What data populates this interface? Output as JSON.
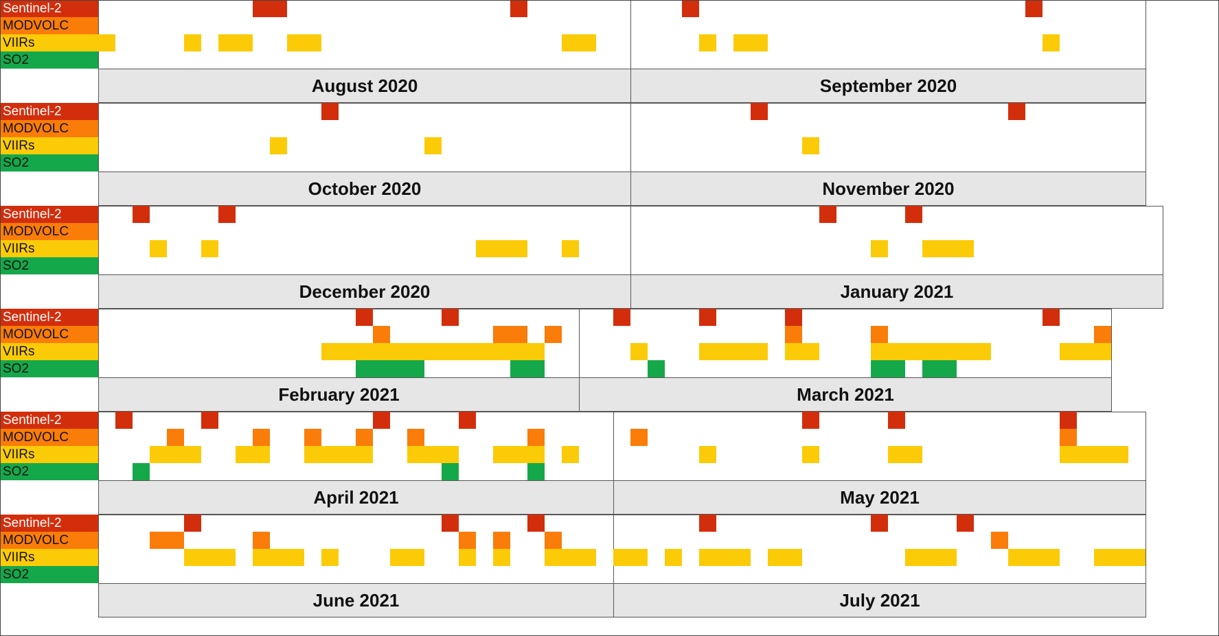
{
  "chart_data": {
    "type": "timeline",
    "legend": [
      "Sentinel-2",
      "MODVOLC",
      "VIIRs",
      "SO2"
    ],
    "colors": {
      "Sentinel-2": "#D22E0C",
      "MODVOLC": "#FA7C09",
      "VIIRs": "#FCCB08",
      "SO2": "#15A84A"
    },
    "rows": [
      {
        "months": [
          {
            "label": "August 2020",
            "days": 31,
            "series": {
              "Sentinel-2": [
                10,
                11,
                25
              ],
              "MODVOLC": [],
              "VIIRs": [
                1,
                6,
                8,
                9,
                12,
                13,
                28,
                29
              ],
              "SO2": []
            }
          },
          {
            "label": "September 2020",
            "days": 30,
            "series": {
              "Sentinel-2": [
                4,
                24
              ],
              "MODVOLC": [],
              "VIIRs": [
                5,
                7,
                8,
                25
              ],
              "SO2": []
            }
          }
        ]
      },
      {
        "months": [
          {
            "label": "October 2020",
            "days": 31,
            "series": {
              "Sentinel-2": [
                14
              ],
              "MODVOLC": [],
              "VIIRs": [
                11,
                20
              ],
              "SO2": []
            }
          },
          {
            "label": "November 2020",
            "days": 30,
            "series": {
              "Sentinel-2": [
                8,
                23
              ],
              "MODVOLC": [],
              "VIIRs": [
                11
              ],
              "SO2": []
            }
          }
        ]
      },
      {
        "months": [
          {
            "label": "December 2020",
            "days": 31,
            "series": {
              "Sentinel-2": [
                3,
                8
              ],
              "MODVOLC": [],
              "VIIRs": [
                4,
                7,
                23,
                24,
                25,
                28
              ],
              "SO2": []
            }
          },
          {
            "label": "January 2021",
            "days": 31,
            "series": {
              "Sentinel-2": [
                12,
                17
              ],
              "MODVOLC": [],
              "VIIRs": [
                15,
                18,
                19,
                20
              ],
              "SO2": []
            }
          }
        ]
      },
      {
        "months": [
          {
            "label": "February 2021",
            "days": 28,
            "series": {
              "Sentinel-2": [
                16,
                21
              ],
              "MODVOLC": [
                17,
                24,
                25,
                27
              ],
              "VIIRs": [
                14,
                15,
                16,
                17,
                18,
                19,
                20,
                21,
                22,
                23,
                24,
                25,
                26
              ],
              "SO2": [
                16,
                17,
                18,
                19,
                25,
                26
              ]
            }
          },
          {
            "label": "March 2021",
            "days": 31,
            "series": {
              "Sentinel-2": [
                3,
                8,
                13,
                28
              ],
              "MODVOLC": [
                13,
                18,
                31
              ],
              "VIIRs": [
                4,
                8,
                9,
                10,
                11,
                13,
                14,
                18,
                19,
                20,
                21,
                22,
                23,
                24,
                29,
                30,
                31
              ],
              "SO2": [
                5,
                18,
                19,
                21,
                22
              ]
            }
          }
        ]
      },
      {
        "months": [
          {
            "label": "April 2021",
            "days": 30,
            "series": {
              "Sentinel-2": [
                2,
                7,
                17,
                22
              ],
              "MODVOLC": [
                5,
                10,
                13,
                16,
                19,
                26
              ],
              "VIIRs": [
                4,
                5,
                6,
                9,
                10,
                13,
                14,
                15,
                16,
                19,
                20,
                21,
                24,
                25,
                26,
                28
              ],
              "SO2": [
                3,
                21,
                26
              ]
            }
          },
          {
            "label": "May 2021",
            "days": 31,
            "series": {
              "Sentinel-2": [
                12,
                17,
                27
              ],
              "MODVOLC": [
                2,
                27
              ],
              "VIIRs": [
                6,
                12,
                17,
                18,
                27,
                28,
                29,
                30
              ],
              "SO2": []
            }
          }
        ]
      },
      {
        "months": [
          {
            "label": "June 2021",
            "days": 30,
            "series": {
              "Sentinel-2": [
                6,
                21,
                26
              ],
              "MODVOLC": [
                4,
                5,
                10,
                22,
                24,
                27
              ],
              "VIIRs": [
                6,
                7,
                8,
                10,
                11,
                12,
                14,
                18,
                19,
                22,
                24,
                27,
                28,
                29
              ],
              "SO2": []
            }
          },
          {
            "label": "July 2021",
            "days": 31,
            "series": {
              "Sentinel-2": [
                6,
                16,
                21
              ],
              "MODVOLC": [
                23
              ],
              "VIIRs": [
                1,
                2,
                4,
                6,
                7,
                8,
                10,
                11,
                18,
                19,
                20,
                24,
                25,
                26,
                29,
                30,
                31
              ],
              "SO2": []
            }
          }
        ]
      }
    ]
  }
}
